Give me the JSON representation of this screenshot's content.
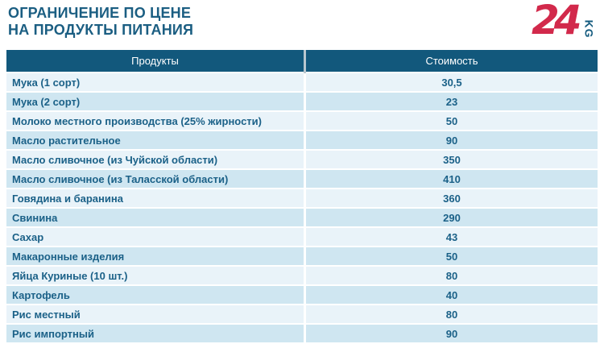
{
  "header": {
    "title_line1": "ОГРАНИЧЕНИЕ ПО ЦЕНЕ",
    "title_line2": "НА ПРОДУКТЫ ПИТАНИЯ",
    "logo": {
      "number": "24",
      "country_code": "KG"
    }
  },
  "colors": {
    "accent_teal": "#12587c",
    "title_text": "#1b5e82",
    "row_text": "#1b6188",
    "row_stripe_light": "#e9f3f9",
    "row_stripe_dark": "#cfe6f1",
    "logo_red": "#d2294b",
    "header_text": "#ffffff"
  },
  "chart_data": {
    "type": "table",
    "title": "ОГРАНИЧЕНИЕ ПО ЦЕНЕ НА ПРОДУКТЫ ПИТАНИЯ",
    "columns": [
      "Продукты",
      "Стоимость"
    ],
    "rows": [
      [
        "Мука (1 сорт)",
        "30,5"
      ],
      [
        "Мука (2 сорт)",
        "23"
      ],
      [
        "Молоко местного производства (25% жирности)",
        "50"
      ],
      [
        "Масло растительное",
        "90"
      ],
      [
        "Масло сливочное (из Чуйской области)",
        "350"
      ],
      [
        "Масло сливочное (из Таласской области)",
        "410"
      ],
      [
        "Говядина и баранина",
        "360"
      ],
      [
        "Свинина",
        "290"
      ],
      [
        "Сахар",
        "43"
      ],
      [
        "Макаронные изделия",
        "50"
      ],
      [
        "Яйца Куриные (10 шт.)",
        "80"
      ],
      [
        "Картофель",
        "40"
      ],
      [
        "Рис местный",
        "80"
      ],
      [
        "Рис импортный",
        "90"
      ]
    ],
    "layout": {
      "header_background": "#12587c",
      "striped": true,
      "value_alignment": "center"
    }
  }
}
